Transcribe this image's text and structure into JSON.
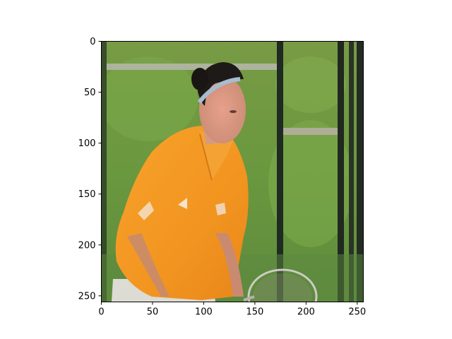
{
  "figure": {
    "image_subject": "tennis player in orange polo shirt",
    "x_ticks": [
      {
        "value": 0,
        "label": "0"
      },
      {
        "value": 50,
        "label": "50"
      },
      {
        "value": 100,
        "label": "100"
      },
      {
        "value": 150,
        "label": "150"
      },
      {
        "value": 200,
        "label": "200"
      },
      {
        "value": 250,
        "label": "250"
      }
    ],
    "y_ticks": [
      {
        "value": 0,
        "label": "0"
      },
      {
        "value": 50,
        "label": "50"
      },
      {
        "value": 100,
        "label": "100"
      },
      {
        "value": 150,
        "label": "150"
      },
      {
        "value": 200,
        "label": "200"
      },
      {
        "value": 250,
        "label": "250"
      }
    ],
    "x_range": [
      0,
      256
    ],
    "y_range": [
      0,
      256
    ],
    "colors": {
      "background_green": "#6e9a40",
      "shirt_orange": "#f39a22",
      "hair": "#1e1a18",
      "skin": "#d99a84",
      "fence": "#1f2a22"
    }
  }
}
